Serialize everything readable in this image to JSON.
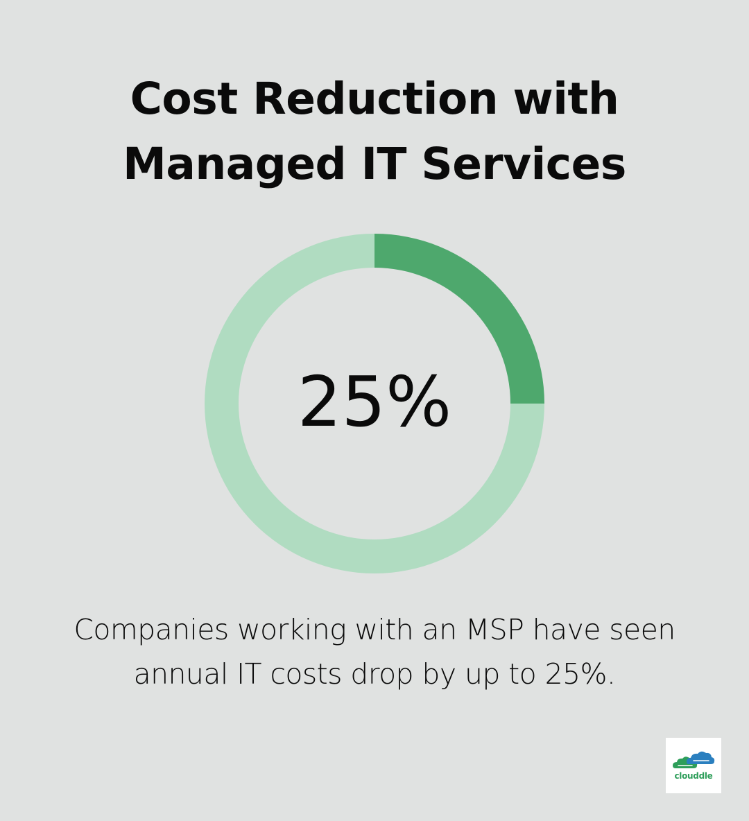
{
  "title_lines": [
    "Cost Reduction with",
    "Managed IT Services"
  ],
  "center_label": "25%",
  "caption_lines": [
    "Companies working with an MSP have seen",
    "annual IT costs drop by up to 25%."
  ],
  "logo": {
    "text": "clouddle",
    "icon": "cloud-icon"
  },
  "colors": {
    "background": "#e0e2e1",
    "filled": "#4ea86d",
    "track": "#b0dcc1",
    "logo_green": "#2e9e5a",
    "logo_blue": "#2a7fbf"
  },
  "chart_data": {
    "type": "pie",
    "style": "donut",
    "values": [
      25,
      75
    ],
    "value_label": "25%"
  }
}
